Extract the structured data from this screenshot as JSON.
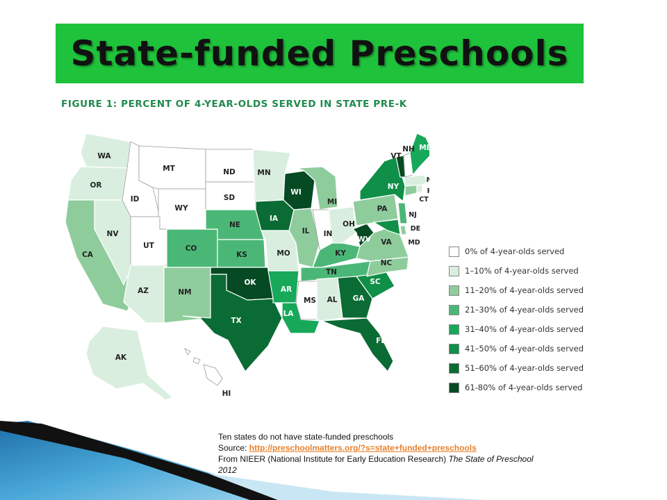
{
  "title": "State-funded Preschools",
  "figure_title": "FIGURE 1: PERCENT OF 4-YEAR-OLDS SERVED IN STATE PRE-K",
  "map": {
    "states": [
      {
        "abbr": "WA",
        "category": 1
      },
      {
        "abbr": "OR",
        "category": 1
      },
      {
        "abbr": "CA",
        "category": 2
      },
      {
        "abbr": "NV",
        "category": 1
      },
      {
        "abbr": "ID",
        "category": 0
      },
      {
        "abbr": "MT",
        "category": 0
      },
      {
        "abbr": "WY",
        "category": 0
      },
      {
        "abbr": "UT",
        "category": 0
      },
      {
        "abbr": "AZ",
        "category": 1
      },
      {
        "abbr": "CO",
        "category": 3
      },
      {
        "abbr": "NM",
        "category": 2
      },
      {
        "abbr": "ND",
        "category": 0
      },
      {
        "abbr": "SD",
        "category": 0
      },
      {
        "abbr": "NE",
        "category": 3
      },
      {
        "abbr": "KS",
        "category": 3
      },
      {
        "abbr": "OK",
        "category": 7
      },
      {
        "abbr": "TX",
        "category": 6
      },
      {
        "abbr": "MN",
        "category": 1
      },
      {
        "abbr": "IA",
        "category": 6
      },
      {
        "abbr": "MO",
        "category": 1
      },
      {
        "abbr": "AR",
        "category": 4
      },
      {
        "abbr": "LA",
        "category": 4
      },
      {
        "abbr": "WI",
        "category": 7
      },
      {
        "abbr": "IL",
        "category": 2
      },
      {
        "abbr": "MI",
        "category": 2
      },
      {
        "abbr": "IN",
        "category": 0
      },
      {
        "abbr": "OH",
        "category": 1
      },
      {
        "abbr": "KY",
        "category": 3
      },
      {
        "abbr": "TN",
        "category": 3
      },
      {
        "abbr": "MS",
        "category": 0
      },
      {
        "abbr": "AL",
        "category": 1
      },
      {
        "abbr": "GA",
        "category": 6
      },
      {
        "abbr": "FL",
        "category": 6
      },
      {
        "abbr": "SC",
        "category": 5
      },
      {
        "abbr": "NC",
        "category": 2
      },
      {
        "abbr": "VA",
        "category": 2
      },
      {
        "abbr": "WV",
        "category": 7
      },
      {
        "abbr": "PA",
        "category": 2
      },
      {
        "abbr": "NY",
        "category": 5
      },
      {
        "abbr": "NJ",
        "category": 3
      },
      {
        "abbr": "DE",
        "category": 2
      },
      {
        "abbr": "MD",
        "category": 5
      },
      {
        "abbr": "CT",
        "category": 2
      },
      {
        "abbr": "RI",
        "category": 1
      },
      {
        "abbr": "MA",
        "category": 1
      },
      {
        "abbr": "VT",
        "category": 7
      },
      {
        "abbr": "NH",
        "category": 0
      },
      {
        "abbr": "ME",
        "category": 4
      },
      {
        "abbr": "AK",
        "category": 1
      },
      {
        "abbr": "HI",
        "category": 0
      }
    ]
  },
  "legend": [
    {
      "label": "0% of 4-year-olds served",
      "color": "#ffffff"
    },
    {
      "label": "1–10% of 4-year-olds served",
      "color": "#d9eedf"
    },
    {
      "label": "11–20% of 4-year-olds served",
      "color": "#8fcc9c"
    },
    {
      "label": "21–30% of 4-year-olds served",
      "color": "#4bb777"
    },
    {
      "label": "31–40% of 4-year-olds served",
      "color": "#17a85a"
    },
    {
      "label": "41–50% of 4-year-olds served",
      "color": "#0f8f47"
    },
    {
      "label": "51–60% of 4-year-olds served",
      "color": "#0b6b34"
    },
    {
      "label": "61-80% of 4-year-olds served",
      "color": "#054a22"
    }
  ],
  "notes": {
    "line1": "Ten states do not have state-funded preschools",
    "source_prefix": "Source: ",
    "source_link": "http://preschoolmatters.org/?s=state+funded+preschools",
    "attribution": "From NIEER (National Institute for Early Education Research) ",
    "publication": "The State of Preschool 2012"
  },
  "colors": {
    "title_bar": "#1fc23b",
    "figure_title": "#1f8a4c",
    "state_border": "#ffffff",
    "link": "#e8812a"
  }
}
